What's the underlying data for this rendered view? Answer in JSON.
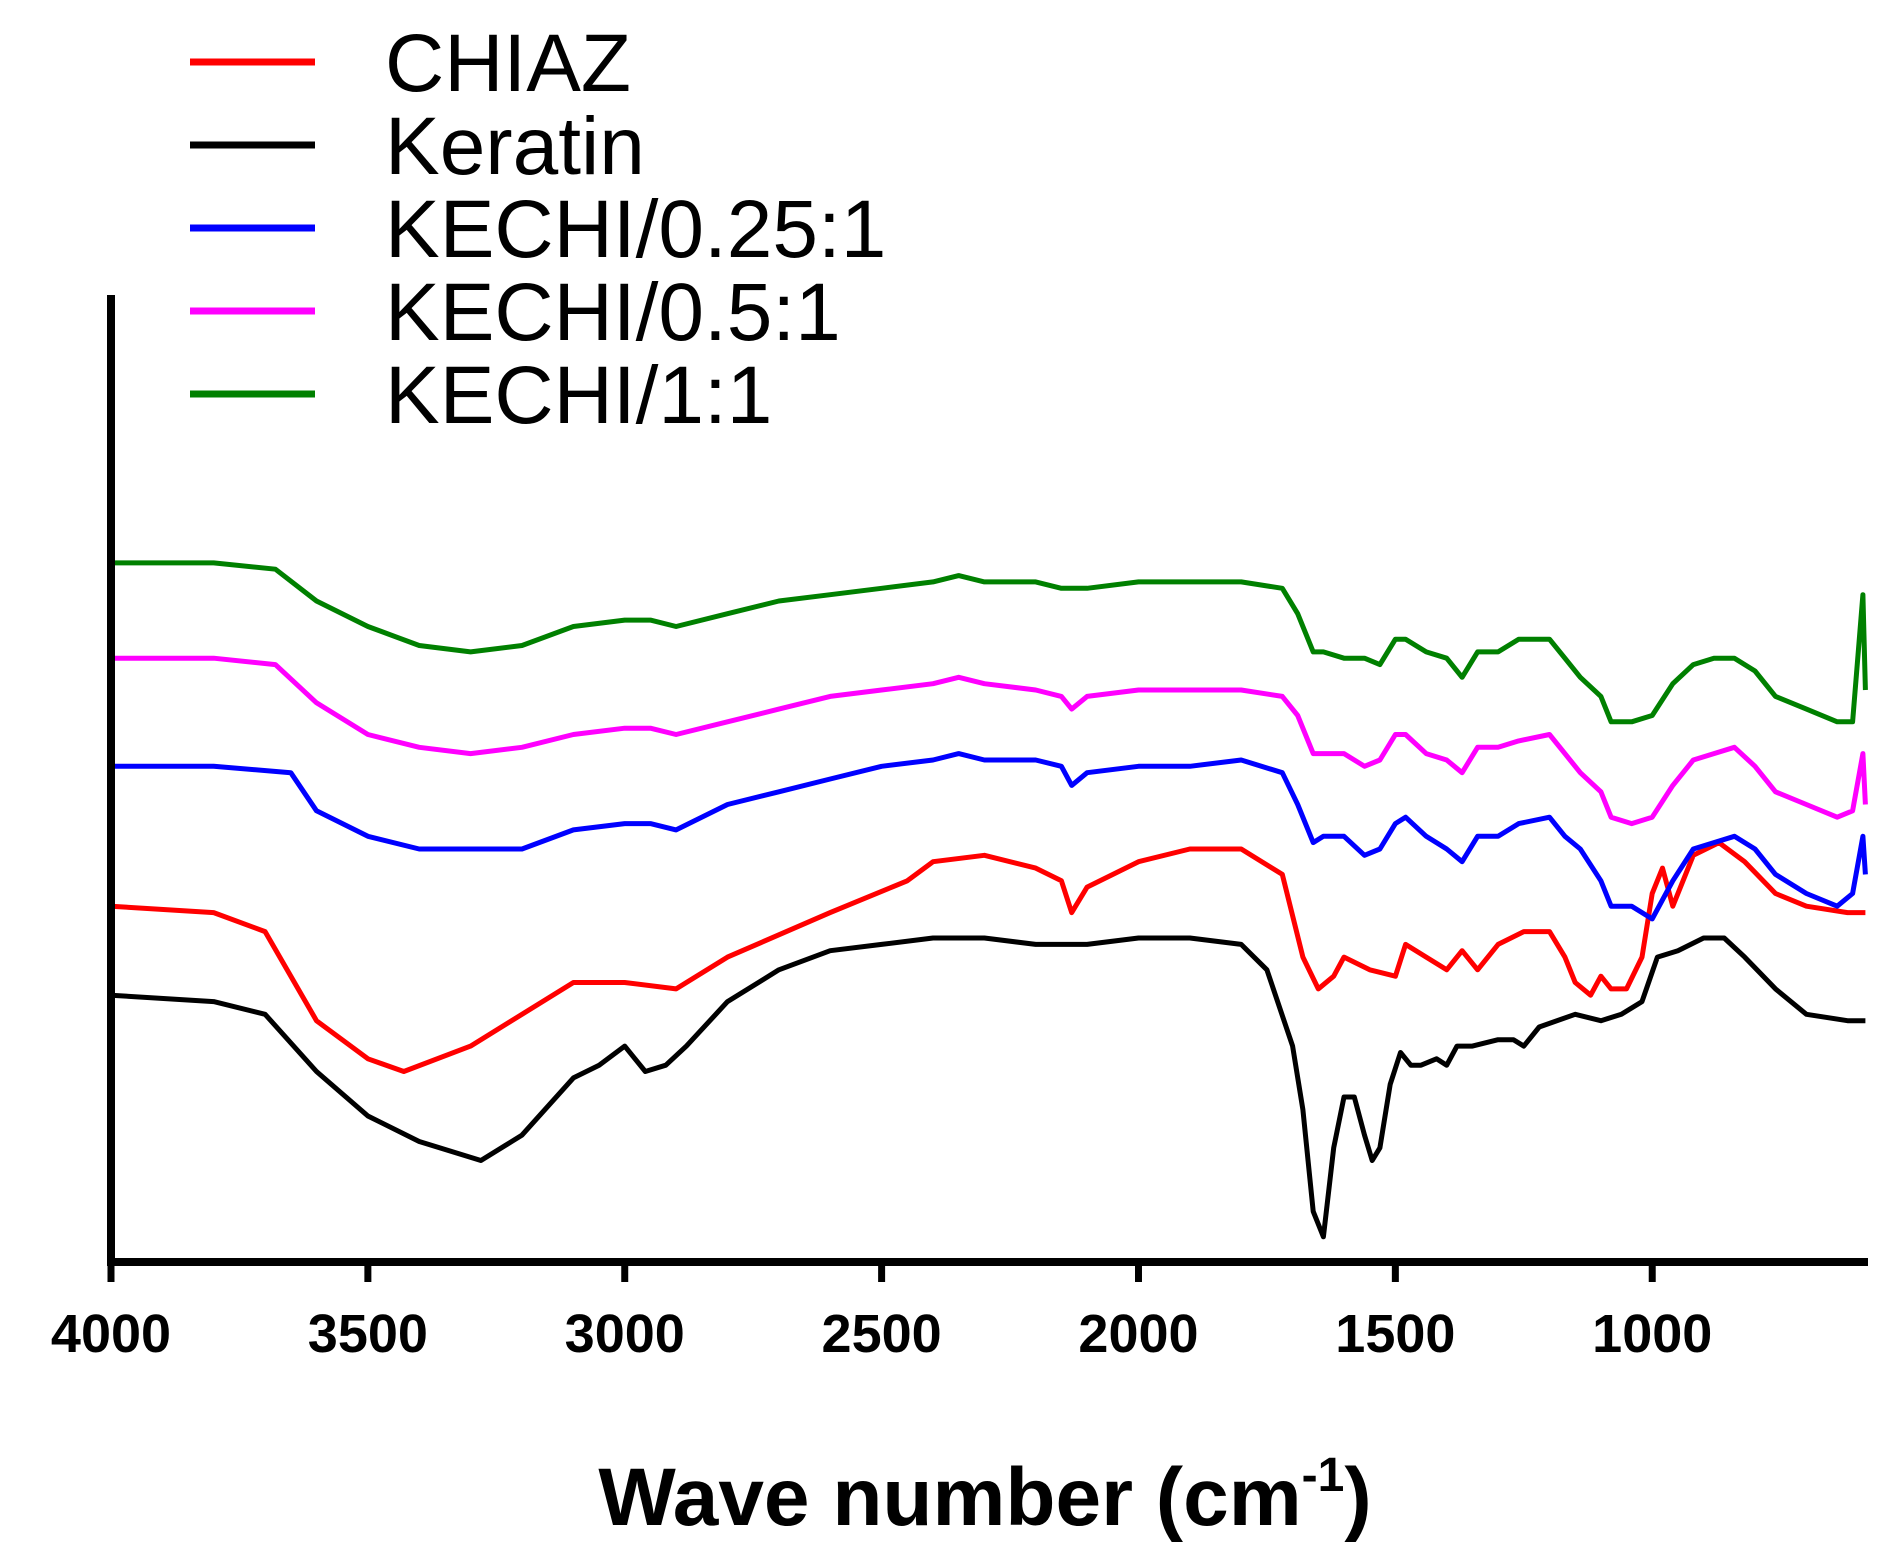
{
  "chart_data": {
    "type": "line",
    "title": "",
    "xlabel": "Wave number (cm",
    "xlabel_sup": "-1",
    "xlabel_close": ")",
    "ylabel": "",
    "xlim": [
      4000,
      580
    ],
    "ylim": [
      0,
      100
    ],
    "x_reversed": true,
    "y_ticks_shown": false,
    "grid": false,
    "legend_position": "top-left",
    "x_ticks": [
      {
        "value": 4000,
        "label": "4000"
      },
      {
        "value": 3500,
        "label": "3500"
      },
      {
        "value": 3000,
        "label": "3000"
      },
      {
        "value": 2500,
        "label": "2500"
      },
      {
        "value": 2000,
        "label": "2000"
      },
      {
        "value": 1500,
        "label": "1500"
      },
      {
        "value": 1000,
        "label": "1000"
      }
    ],
    "series": [
      {
        "name": "CHIAZ",
        "color": "#ff0000",
        "points": [
          [
            4000,
            38
          ],
          [
            3800,
            37
          ],
          [
            3700,
            34
          ],
          [
            3600,
            20
          ],
          [
            3500,
            14
          ],
          [
            3430,
            12
          ],
          [
            3300,
            16
          ],
          [
            3100,
            26
          ],
          [
            3000,
            26
          ],
          [
            2900,
            25
          ],
          [
            2800,
            30
          ],
          [
            2600,
            37
          ],
          [
            2450,
            42
          ],
          [
            2400,
            45
          ],
          [
            2300,
            46
          ],
          [
            2200,
            44
          ],
          [
            2150,
            42
          ],
          [
            2130,
            37
          ],
          [
            2100,
            41
          ],
          [
            2000,
            45
          ],
          [
            1900,
            47
          ],
          [
            1800,
            47
          ],
          [
            1720,
            43
          ],
          [
            1680,
            30
          ],
          [
            1650,
            25
          ],
          [
            1620,
            27
          ],
          [
            1600,
            30
          ],
          [
            1550,
            28
          ],
          [
            1500,
            27
          ],
          [
            1480,
            32
          ],
          [
            1440,
            30
          ],
          [
            1400,
            28
          ],
          [
            1370,
            31
          ],
          [
            1340,
            28
          ],
          [
            1300,
            32
          ],
          [
            1250,
            34
          ],
          [
            1200,
            34
          ],
          [
            1170,
            30
          ],
          [
            1150,
            26
          ],
          [
            1120,
            24
          ],
          [
            1100,
            27
          ],
          [
            1080,
            25
          ],
          [
            1050,
            25
          ],
          [
            1020,
            30
          ],
          [
            1000,
            40
          ],
          [
            980,
            44
          ],
          [
            960,
            38
          ],
          [
            920,
            46
          ],
          [
            870,
            48
          ],
          [
            820,
            45
          ],
          [
            760,
            40
          ],
          [
            700,
            38
          ],
          [
            620,
            37
          ],
          [
            585,
            37
          ]
        ]
      },
      {
        "name": "Keratin",
        "color": "#000000",
        "points": [
          [
            4000,
            24
          ],
          [
            3800,
            23
          ],
          [
            3700,
            21
          ],
          [
            3600,
            12
          ],
          [
            3500,
            5
          ],
          [
            3400,
            1
          ],
          [
            3280,
            -2
          ],
          [
            3200,
            2
          ],
          [
            3100,
            11
          ],
          [
            3050,
            13
          ],
          [
            3000,
            16
          ],
          [
            2960,
            12
          ],
          [
            2920,
            13
          ],
          [
            2880,
            16
          ],
          [
            2800,
            23
          ],
          [
            2700,
            28
          ],
          [
            2600,
            31
          ],
          [
            2500,
            32
          ],
          [
            2400,
            33
          ],
          [
            2300,
            33
          ],
          [
            2200,
            32
          ],
          [
            2100,
            32
          ],
          [
            2000,
            33
          ],
          [
            1900,
            33
          ],
          [
            1800,
            32
          ],
          [
            1750,
            28
          ],
          [
            1700,
            16
          ],
          [
            1680,
            6
          ],
          [
            1660,
            -10
          ],
          [
            1640,
            -14
          ],
          [
            1620,
            0
          ],
          [
            1600,
            8
          ],
          [
            1580,
            8
          ],
          [
            1560,
            2
          ],
          [
            1545,
            -2
          ],
          [
            1530,
            0
          ],
          [
            1510,
            10
          ],
          [
            1490,
            15
          ],
          [
            1470,
            13
          ],
          [
            1450,
            13
          ],
          [
            1420,
            14
          ],
          [
            1400,
            13
          ],
          [
            1380,
            16
          ],
          [
            1350,
            16
          ],
          [
            1300,
            17
          ],
          [
            1270,
            17
          ],
          [
            1250,
            16
          ],
          [
            1220,
            19
          ],
          [
            1150,
            21
          ],
          [
            1100,
            20
          ],
          [
            1060,
            21
          ],
          [
            1020,
            23
          ],
          [
            990,
            30
          ],
          [
            950,
            31
          ],
          [
            900,
            33
          ],
          [
            860,
            33
          ],
          [
            820,
            30
          ],
          [
            760,
            25
          ],
          [
            700,
            21
          ],
          [
            620,
            20
          ],
          [
            585,
            20
          ]
        ]
      },
      {
        "name": "KECHI/0.25:1",
        "color": "#0000ff",
        "points": [
          [
            4000,
            60
          ],
          [
            3800,
            60
          ],
          [
            3650,
            59
          ],
          [
            3600,
            53
          ],
          [
            3500,
            49
          ],
          [
            3400,
            47
          ],
          [
            3300,
            47
          ],
          [
            3200,
            47
          ],
          [
            3100,
            50
          ],
          [
            3000,
            51
          ],
          [
            2950,
            51
          ],
          [
            2900,
            50
          ],
          [
            2800,
            54
          ],
          [
            2700,
            56
          ],
          [
            2600,
            58
          ],
          [
            2500,
            60
          ],
          [
            2400,
            61
          ],
          [
            2350,
            62
          ],
          [
            2300,
            61
          ],
          [
            2200,
            61
          ],
          [
            2150,
            60
          ],
          [
            2130,
            57
          ],
          [
            2100,
            59
          ],
          [
            2000,
            60
          ],
          [
            1900,
            60
          ],
          [
            1800,
            61
          ],
          [
            1720,
            59
          ],
          [
            1690,
            54
          ],
          [
            1660,
            48
          ],
          [
            1640,
            49
          ],
          [
            1600,
            49
          ],
          [
            1560,
            46
          ],
          [
            1530,
            47
          ],
          [
            1500,
            51
          ],
          [
            1480,
            52
          ],
          [
            1440,
            49
          ],
          [
            1400,
            47
          ],
          [
            1370,
            45
          ],
          [
            1340,
            49
          ],
          [
            1300,
            49
          ],
          [
            1260,
            51
          ],
          [
            1200,
            52
          ],
          [
            1170,
            49
          ],
          [
            1140,
            47
          ],
          [
            1100,
            42
          ],
          [
            1080,
            38
          ],
          [
            1040,
            38
          ],
          [
            1000,
            36
          ],
          [
            960,
            42
          ],
          [
            920,
            47
          ],
          [
            880,
            48
          ],
          [
            840,
            49
          ],
          [
            800,
            47
          ],
          [
            760,
            43
          ],
          [
            700,
            40
          ],
          [
            640,
            38
          ],
          [
            610,
            40
          ],
          [
            590,
            49
          ],
          [
            585,
            43
          ]
        ]
      },
      {
        "name": "KECHI/0.5:1",
        "color": "#ff00ff",
        "points": [
          [
            4000,
            77
          ],
          [
            3800,
            77
          ],
          [
            3680,
            76
          ],
          [
            3600,
            70
          ],
          [
            3500,
            65
          ],
          [
            3400,
            63
          ],
          [
            3300,
            62
          ],
          [
            3200,
            63
          ],
          [
            3100,
            65
          ],
          [
            3000,
            66
          ],
          [
            2950,
            66
          ],
          [
            2900,
            65
          ],
          [
            2800,
            67
          ],
          [
            2700,
            69
          ],
          [
            2600,
            71
          ],
          [
            2500,
            72
          ],
          [
            2400,
            73
          ],
          [
            2350,
            74
          ],
          [
            2300,
            73
          ],
          [
            2200,
            72
          ],
          [
            2150,
            71
          ],
          [
            2130,
            69
          ],
          [
            2100,
            71
          ],
          [
            2000,
            72
          ],
          [
            1900,
            72
          ],
          [
            1800,
            72
          ],
          [
            1720,
            71
          ],
          [
            1690,
            68
          ],
          [
            1660,
            62
          ],
          [
            1640,
            62
          ],
          [
            1600,
            62
          ],
          [
            1560,
            60
          ],
          [
            1530,
            61
          ],
          [
            1500,
            65
          ],
          [
            1480,
            65
          ],
          [
            1440,
            62
          ],
          [
            1400,
            61
          ],
          [
            1370,
            59
          ],
          [
            1340,
            63
          ],
          [
            1300,
            63
          ],
          [
            1260,
            64
          ],
          [
            1200,
            65
          ],
          [
            1170,
            62
          ],
          [
            1140,
            59
          ],
          [
            1100,
            56
          ],
          [
            1080,
            52
          ],
          [
            1040,
            51
          ],
          [
            1000,
            52
          ],
          [
            960,
            57
          ],
          [
            920,
            61
          ],
          [
            880,
            62
          ],
          [
            840,
            63
          ],
          [
            800,
            60
          ],
          [
            760,
            56
          ],
          [
            700,
            54
          ],
          [
            640,
            52
          ],
          [
            610,
            53
          ],
          [
            590,
            62
          ],
          [
            585,
            54
          ]
        ]
      },
      {
        "name": "KECHI/1:1",
        "color": "#008000",
        "points": [
          [
            4000,
            92
          ],
          [
            3800,
            92
          ],
          [
            3680,
            91
          ],
          [
            3600,
            86
          ],
          [
            3500,
            82
          ],
          [
            3400,
            79
          ],
          [
            3300,
            78
          ],
          [
            3200,
            79
          ],
          [
            3100,
            82
          ],
          [
            3000,
            83
          ],
          [
            2950,
            83
          ],
          [
            2900,
            82
          ],
          [
            2800,
            84
          ],
          [
            2700,
            86
          ],
          [
            2600,
            87
          ],
          [
            2500,
            88
          ],
          [
            2400,
            89
          ],
          [
            2350,
            90
          ],
          [
            2300,
            89
          ],
          [
            2200,
            89
          ],
          [
            2150,
            88
          ],
          [
            2130,
            88
          ],
          [
            2100,
            88
          ],
          [
            2000,
            89
          ],
          [
            1900,
            89
          ],
          [
            1800,
            89
          ],
          [
            1720,
            88
          ],
          [
            1690,
            84
          ],
          [
            1660,
            78
          ],
          [
            1640,
            78
          ],
          [
            1600,
            77
          ],
          [
            1560,
            77
          ],
          [
            1530,
            76
          ],
          [
            1500,
            80
          ],
          [
            1480,
            80
          ],
          [
            1440,
            78
          ],
          [
            1400,
            77
          ],
          [
            1370,
            74
          ],
          [
            1340,
            78
          ],
          [
            1300,
            78
          ],
          [
            1260,
            80
          ],
          [
            1200,
            80
          ],
          [
            1170,
            77
          ],
          [
            1140,
            74
          ],
          [
            1100,
            71
          ],
          [
            1080,
            67
          ],
          [
            1040,
            67
          ],
          [
            1000,
            68
          ],
          [
            960,
            73
          ],
          [
            920,
            76
          ],
          [
            880,
            77
          ],
          [
            840,
            77
          ],
          [
            800,
            75
          ],
          [
            760,
            71
          ],
          [
            700,
            69
          ],
          [
            640,
            67
          ],
          [
            610,
            67
          ],
          [
            590,
            87
          ],
          [
            585,
            72
          ]
        ]
      }
    ]
  }
}
